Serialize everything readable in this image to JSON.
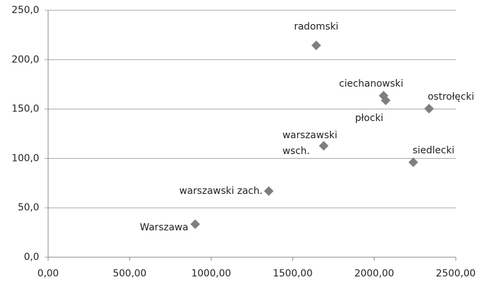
{
  "chart_data": {
    "type": "scatter",
    "point_labels": [
      "radomski",
      "ciechanowski",
      "płocki",
      "ostrołęcki",
      "warszawski wsch.",
      "siedlecki",
      "warszawski zach.",
      "Warszawa"
    ],
    "x": [
      1644,
      2057,
      2070,
      2336,
      1690,
      2239,
      1353,
      902
    ],
    "values": [
      214.5,
      163.6,
      158.8,
      150.4,
      112.8,
      96.1,
      66.9,
      33.4
    ],
    "color": "#7f7f7f",
    "xlim": [
      0,
      2500
    ],
    "xticks": [
      {
        "value": 0,
        "label": "0,00"
      },
      {
        "value": 500,
        "label": "500,00"
      },
      {
        "value": 1000,
        "label": "1000,00"
      },
      {
        "value": 1500,
        "label": "1500,00"
      },
      {
        "value": 2000,
        "label": "2000,00"
      },
      {
        "value": 2500,
        "label": "2500,00"
      }
    ],
    "ylim": [
      0,
      250
    ],
    "yticks": [
      {
        "value": 0,
        "label": "0,0"
      },
      {
        "value": 50,
        "label": "50,0"
      },
      {
        "value": 100,
        "label": "100,0"
      },
      {
        "value": 150,
        "label": "150,0"
      },
      {
        "value": 200,
        "label": "200,0"
      },
      {
        "value": 250,
        "label": "250,0"
      }
    ],
    "grid": true
  }
}
